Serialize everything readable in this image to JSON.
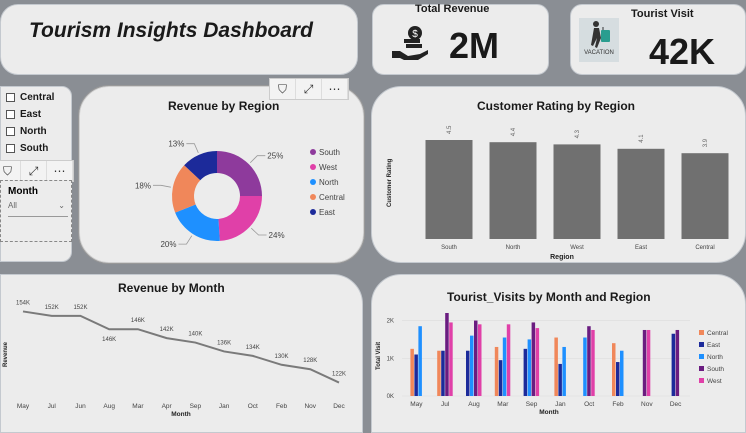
{
  "header": {
    "title": "Tourism Insights Dashboard"
  },
  "kpis": {
    "revenue": {
      "label": "Total Revenue",
      "value": "2M",
      "icon": "money-hand-icon"
    },
    "visits": {
      "label": "Tourist Visit",
      "value": "42K",
      "icon": "vacation-traveler-icon",
      "icon_caption": "VACATION"
    }
  },
  "region_slicer": {
    "items": [
      "Central",
      "East",
      "North",
      "South"
    ]
  },
  "month_slicer": {
    "label": "Month",
    "selected": "All"
  },
  "toolbar_icons": [
    "filter-icon",
    "focus-mode-icon",
    "more-options-icon"
  ],
  "chart_data": [
    {
      "type": "pie",
      "variant": "donut",
      "title": "Revenue by Region",
      "slices": [
        {
          "label": "South",
          "value": 25,
          "display": "25%",
          "color": "#8e3a9c"
        },
        {
          "label": "West",
          "value": 24,
          "display": "24%",
          "color": "#e040a8"
        },
        {
          "label": "North",
          "value": 20,
          "display": "20%",
          "color": "#1e90ff"
        },
        {
          "label": "Central",
          "value": 18,
          "display": "18%",
          "color": "#f0875a"
        },
        {
          "label": "East",
          "value": 13,
          "display": "13%",
          "color": "#1c2a9a"
        }
      ],
      "legend_position": "right"
    },
    {
      "type": "bar",
      "title": "Customer Rating by Region",
      "categories": [
        "South",
        "North",
        "West",
        "East",
        "Central"
      ],
      "values": [
        4.5,
        4.4,
        4.3,
        4.1,
        3.9
      ],
      "xlabel": "Region",
      "ylabel": "Customer Rating",
      "ylim": [
        0,
        5
      ],
      "color": "#707070"
    },
    {
      "type": "line",
      "title": "Revenue by Month",
      "x": [
        "May",
        "Jul",
        "Jun",
        "Aug",
        "Mar",
        "Apr",
        "Sep",
        "Jan",
        "Oct",
        "Feb",
        "Nov",
        "Dec"
      ],
      "values": [
        154,
        152,
        152,
        146,
        146,
        142,
        140,
        136,
        134,
        130,
        128,
        122
      ],
      "labels": [
        "154K",
        "152K",
        "152K",
        "146K",
        "146K",
        "142K",
        "140K",
        "136K",
        "134K",
        "130K",
        "128K",
        "122K"
      ],
      "xlabel": "Month",
      "ylabel": "Revenue",
      "ylim": [
        120,
        156
      ],
      "color": "#7a7a7a"
    },
    {
      "type": "bar",
      "variant": "clustered",
      "title": "Tourist_Visits by Month and Region",
      "categories": [
        "May",
        "Jul",
        "Aug",
        "Mar",
        "Sep",
        "Jan",
        "Oct",
        "Feb",
        "Nov",
        "Dec"
      ],
      "yticks": [
        "0K",
        "1K",
        "2K"
      ],
      "ylim": [
        0,
        2200
      ],
      "xlabel": "Month",
      "ylabel": "Total Visit",
      "series": [
        {
          "name": "Central",
          "color": "#f0875a",
          "values": [
            1250,
            1200,
            0,
            1300,
            0,
            1550,
            0,
            1400,
            0,
            0
          ]
        },
        {
          "name": "East",
          "color": "#1c2a9a",
          "values": [
            1100,
            1200,
            1200,
            950,
            1250,
            850,
            0,
            900,
            0,
            1650
          ]
        },
        {
          "name": "North",
          "color": "#1e90ff",
          "values": [
            1850,
            0,
            1600,
            1550,
            1500,
            1300,
            1550,
            1200,
            0,
            0
          ]
        },
        {
          "name": "South",
          "color": "#6a1c80",
          "values": [
            0,
            2200,
            2000,
            0,
            1950,
            0,
            1850,
            0,
            1750,
            1750
          ]
        },
        {
          "name": "West",
          "color": "#e040a8",
          "values": [
            0,
            1950,
            1900,
            1900,
            1800,
            0,
            1750,
            0,
            1750,
            0
          ]
        }
      ],
      "legend_position": "right"
    }
  ]
}
